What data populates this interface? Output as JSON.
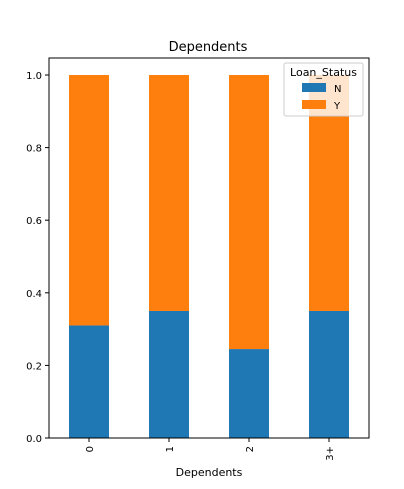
{
  "chart_data": {
    "type": "bar",
    "stacked": true,
    "title": "Dependents",
    "xlabel": "Dependents",
    "ylabel": "",
    "categories": [
      "0",
      "1",
      "2",
      "3+"
    ],
    "series": [
      {
        "name": "N",
        "values": [
          0.31,
          0.35,
          0.245,
          0.35
        ],
        "color": "#1f77b4"
      },
      {
        "name": "Y",
        "values": [
          0.69,
          0.65,
          0.755,
          0.65
        ],
        "color": "#ff7f0e"
      }
    ],
    "ylim": [
      0,
      1.0
    ],
    "yticks": [
      "0.0",
      "0.2",
      "0.4",
      "0.6",
      "0.8",
      "1.0"
    ],
    "grid": false,
    "legend": {
      "title": "Loan_Status",
      "placement": "top-right"
    }
  }
}
